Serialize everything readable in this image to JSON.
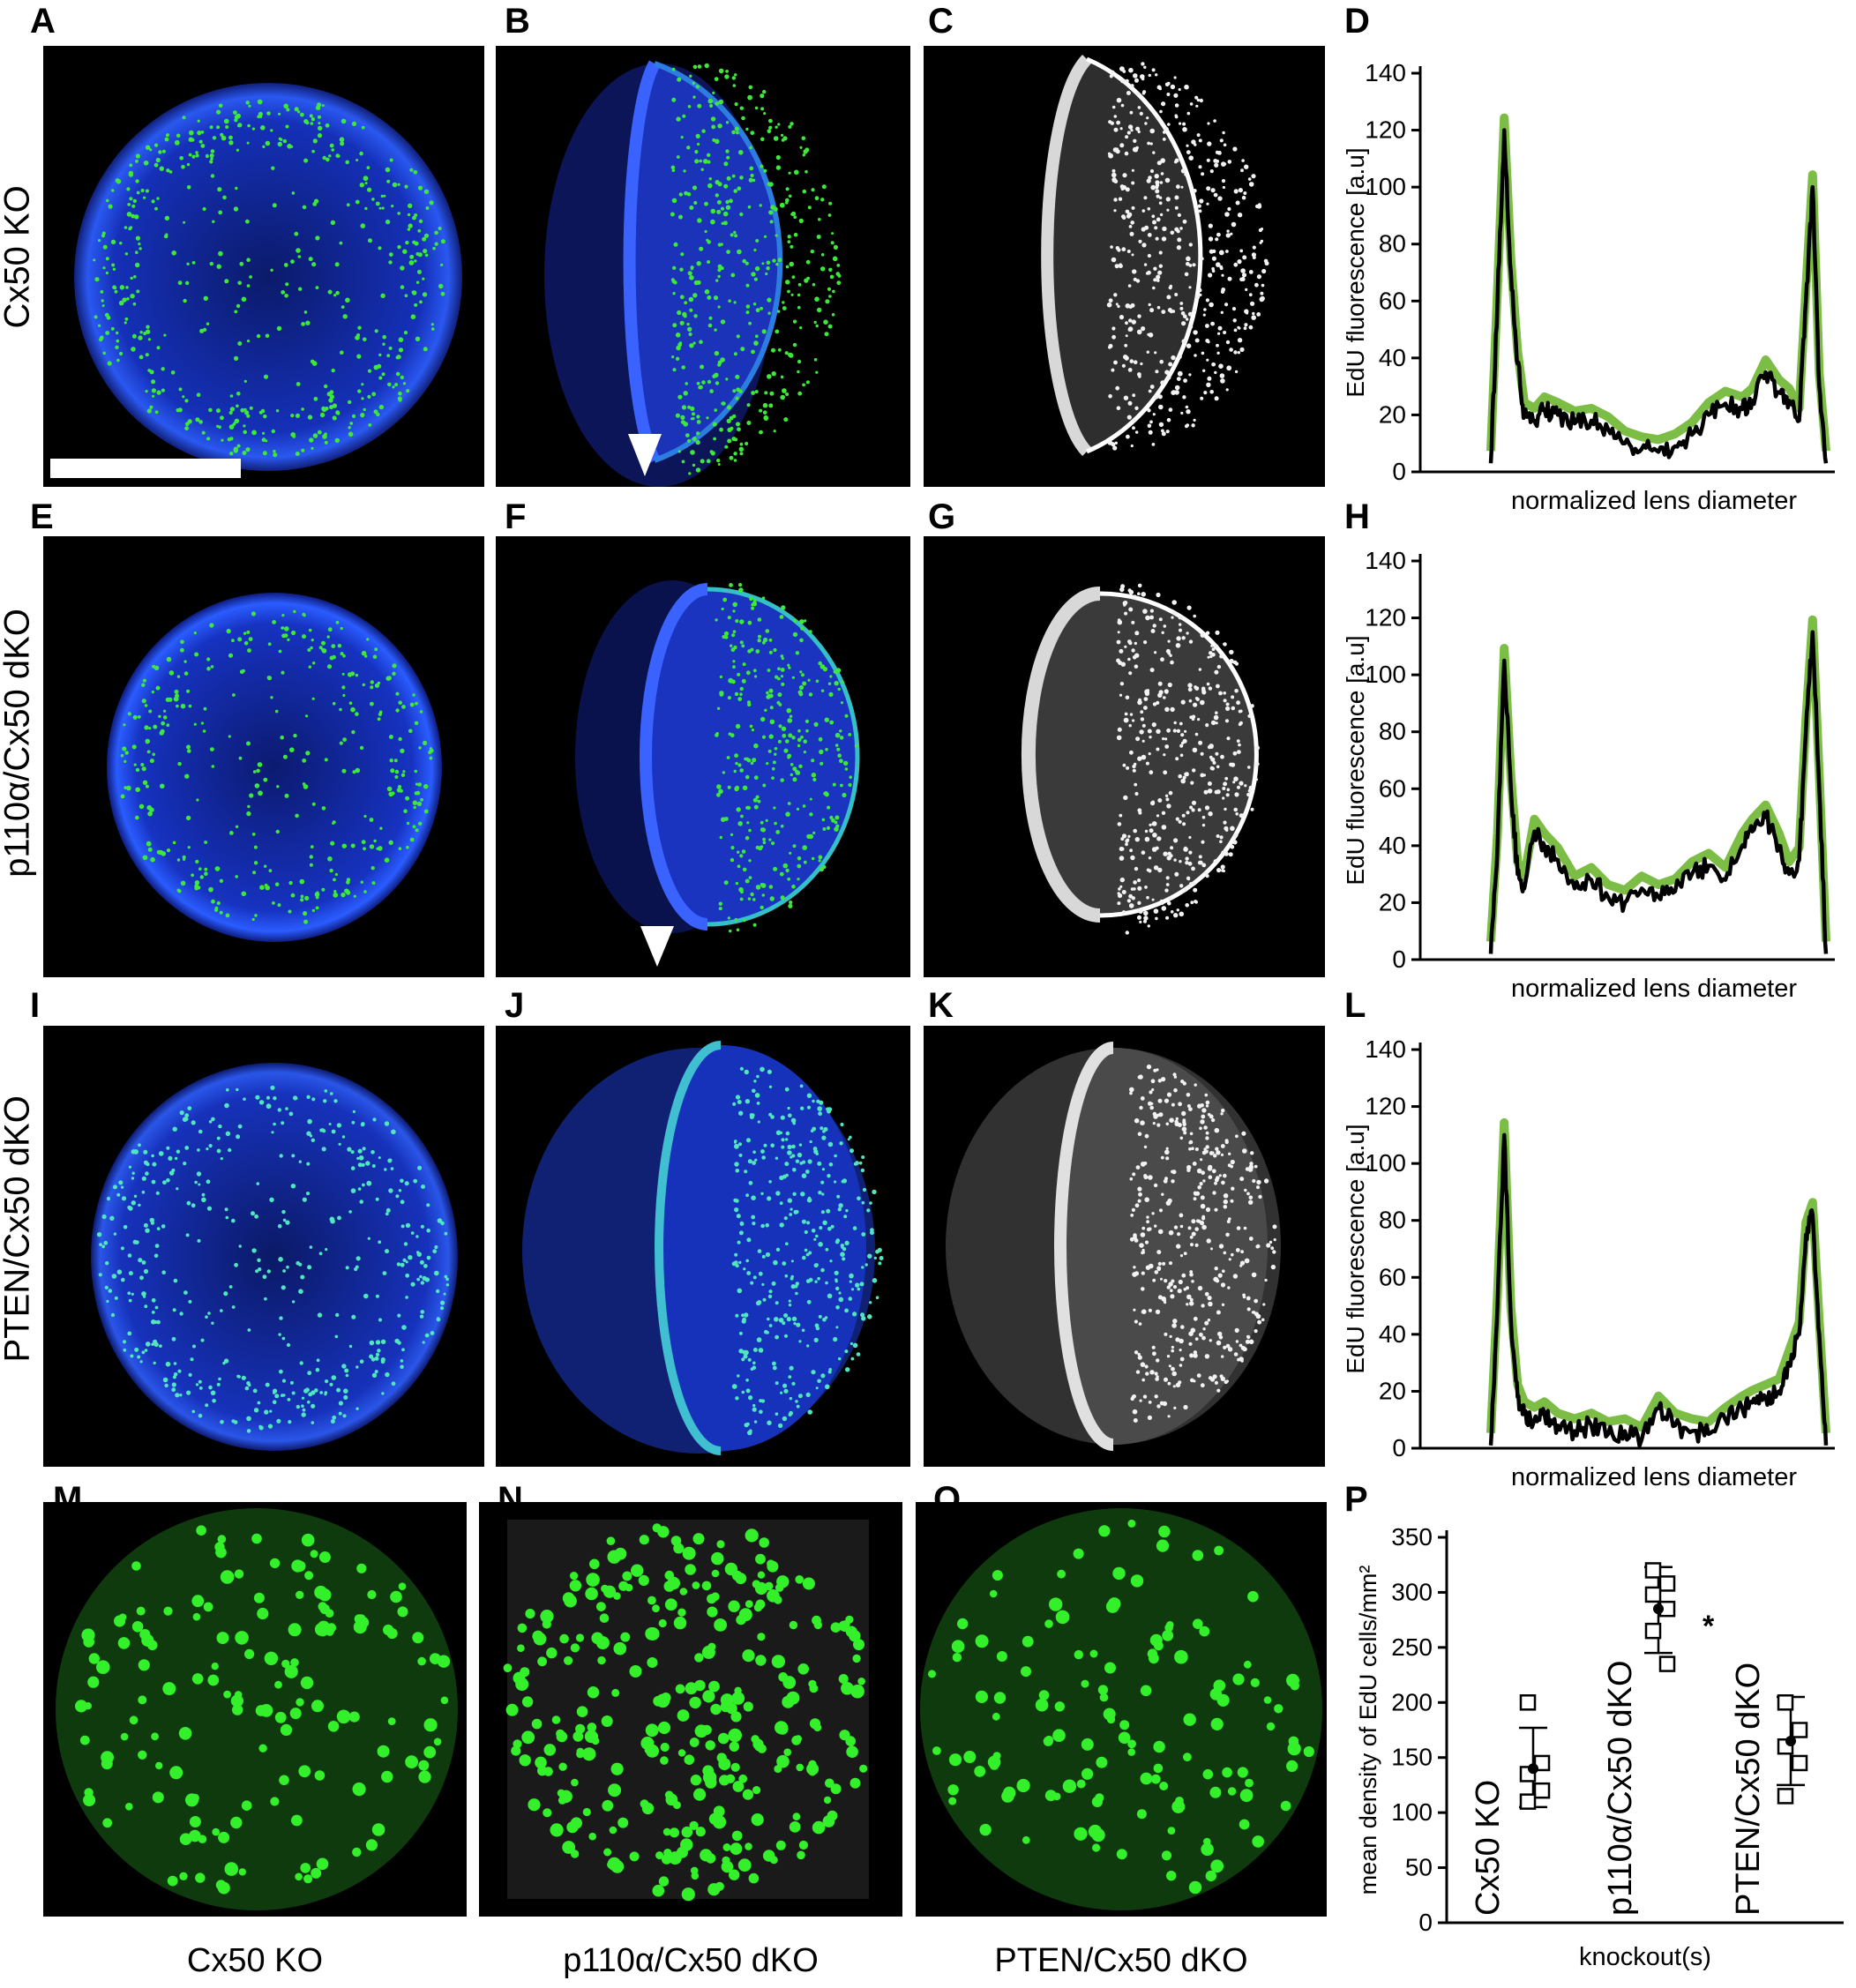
{
  "panel_letters": [
    "A",
    "B",
    "C",
    "D",
    "E",
    "F",
    "G",
    "H",
    "I",
    "J",
    "K",
    "L",
    "M",
    "N",
    "O",
    "P"
  ],
  "row_labels": [
    "Cx50 KO",
    "p110α/Cx50 dKO",
    "PTEN/Cx50 dKO"
  ],
  "bottom_labels": [
    "Cx50 KO",
    "p110α/Cx50 dKO",
    "PTEN/Cx50 dKO"
  ],
  "colors": {
    "nuclei_blue": "#1f3bd6",
    "edu_green": "#39e12a",
    "profile_mean": "#000000",
    "profile_sd": "#7cbd45"
  },
  "chart_data": [
    {
      "panel": "D",
      "type": "line",
      "xlabel": "normalized lens diameter",
      "ylabel": "EdU fluorescence [a.u]",
      "ylim": [
        0,
        140
      ],
      "yticks": [
        0,
        20,
        40,
        60,
        80,
        100,
        120,
        140
      ],
      "x": [
        0.0,
        0.02,
        0.04,
        0.06,
        0.08,
        0.1,
        0.13,
        0.16,
        0.2,
        0.25,
        0.3,
        0.35,
        0.4,
        0.45,
        0.5,
        0.55,
        0.6,
        0.65,
        0.7,
        0.75,
        0.78,
        0.82,
        0.86,
        0.89,
        0.92,
        0.94,
        0.96,
        0.98,
        1.0
      ],
      "series": [
        {
          "values": [
            3,
            60,
            120,
            70,
            38,
            20,
            18,
            22,
            20,
            17,
            18,
            15,
            10,
            8,
            7,
            9,
            13,
            20,
            24,
            22,
            25,
            35,
            28,
            25,
            18,
            60,
            100,
            30,
            3
          ]
        }
      ]
    },
    {
      "panel": "H",
      "type": "line",
      "xlabel": "normalized lens diameter",
      "ylabel": "EdU fluorescence [a.u]",
      "ylim": [
        0,
        140
      ],
      "yticks": [
        0,
        20,
        40,
        60,
        80,
        100,
        120,
        140
      ],
      "x": [
        0.0,
        0.02,
        0.04,
        0.06,
        0.08,
        0.1,
        0.13,
        0.16,
        0.2,
        0.25,
        0.3,
        0.35,
        0.4,
        0.45,
        0.5,
        0.55,
        0.6,
        0.65,
        0.7,
        0.75,
        0.78,
        0.82,
        0.86,
        0.89,
        0.92,
        0.94,
        0.96,
        0.98,
        1.0
      ],
      "series": [
        {
          "values": [
            2,
            40,
            105,
            60,
            30,
            25,
            45,
            40,
            35,
            25,
            28,
            22,
            20,
            25,
            22,
            24,
            30,
            33,
            28,
            40,
            45,
            50,
            40,
            30,
            35,
            80,
            115,
            60,
            2
          ]
        }
      ]
    },
    {
      "panel": "L",
      "type": "line",
      "xlabel": "normalized lens diameter",
      "ylabel": "EdU fluorescence [a.u]",
      "ylim": [
        0,
        140
      ],
      "yticks": [
        0,
        20,
        40,
        60,
        80,
        100,
        120,
        140
      ],
      "x": [
        0.0,
        0.02,
        0.04,
        0.06,
        0.08,
        0.1,
        0.13,
        0.16,
        0.2,
        0.25,
        0.3,
        0.35,
        0.4,
        0.45,
        0.5,
        0.55,
        0.6,
        0.65,
        0.7,
        0.75,
        0.78,
        0.82,
        0.86,
        0.89,
        0.92,
        0.94,
        0.96,
        0.98,
        1.0
      ],
      "series": [
        {
          "values": [
            1,
            50,
            110,
            45,
            18,
            12,
            10,
            12,
            8,
            6,
            8,
            5,
            6,
            3,
            14,
            8,
            6,
            5,
            10,
            14,
            16,
            18,
            20,
            30,
            40,
            75,
            82,
            40,
            1
          ]
        }
      ]
    },
    {
      "panel": "P",
      "type": "scatter",
      "xlabel": "knockout(s)",
      "ylabel": "mean density of EdU cells/mm²",
      "ylim": [
        0,
        350
      ],
      "yticks": [
        0,
        50,
        100,
        150,
        200,
        250,
        300,
        350
      ],
      "categories": [
        "Cx50 KO",
        "p110α/Cx50 dKO",
        "PTEN/Cx50 dKO"
      ],
      "points": [
        [
          200,
          145,
          135,
          120,
          110
        ],
        [
          320,
          308,
          298,
          285,
          265,
          235
        ],
        [
          200,
          175,
          160,
          145,
          115
        ]
      ],
      "mean": [
        140,
        285,
        165
      ],
      "sd_low": [
        105,
        245,
        125
      ],
      "sd_high": [
        177,
        323,
        205
      ],
      "annotation": "*"
    }
  ]
}
